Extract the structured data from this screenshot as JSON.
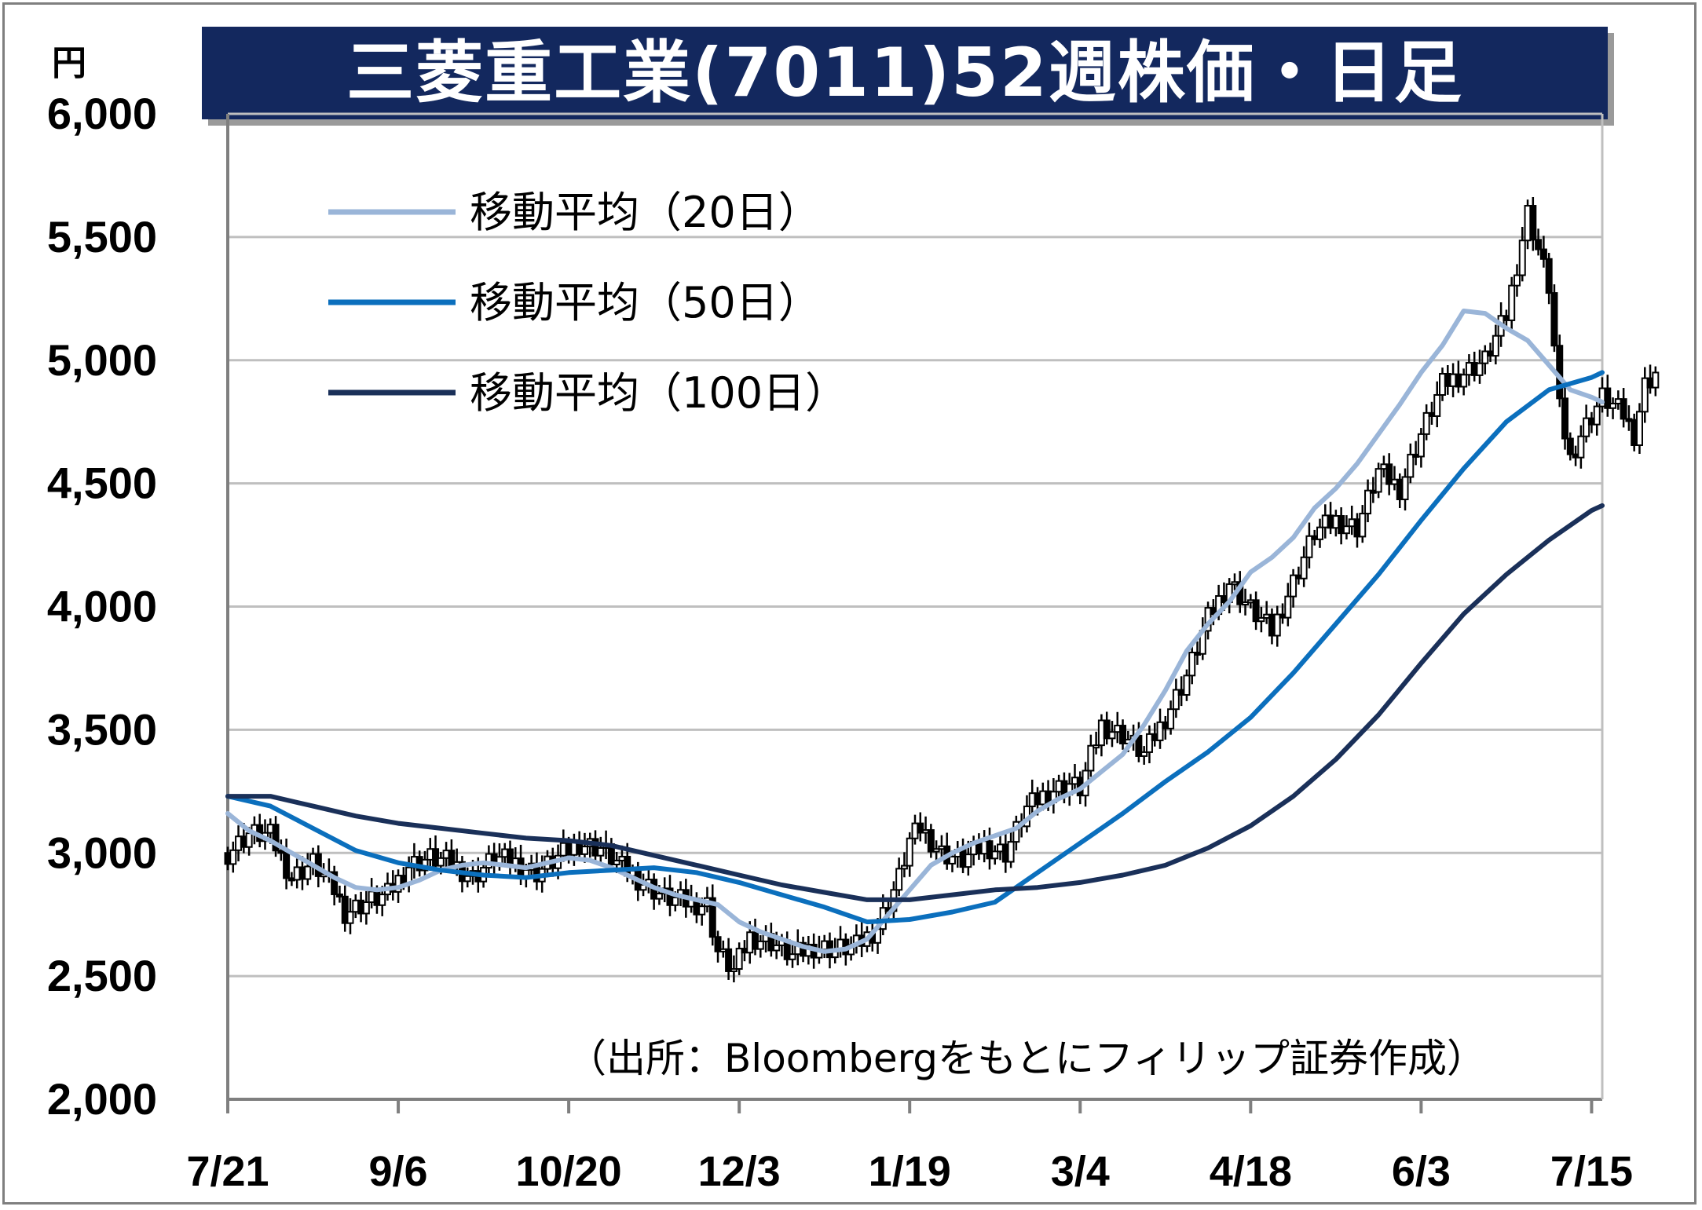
{
  "header": {
    "title": "三菱重工業(7011)52週株価・日足",
    "unit": "円"
  },
  "source_note": "（出所：Bloombergをもとにフィリップ証券作成）",
  "colors": {
    "title_bg": "#13285e",
    "ma20": "#9ab5d8",
    "ma50": "#0b6fbd",
    "ma100": "#1a3059",
    "candle": "#000000",
    "grid": "#bfbfbf"
  },
  "chart_data": {
    "type": "line",
    "title": "三菱重工業(7011)52週株価・日足",
    "ylabel": "円",
    "ylim": [
      2000,
      6000
    ],
    "yticks": [
      2000,
      2500,
      3000,
      3500,
      4000,
      4500,
      5000,
      5500,
      6000
    ],
    "ytick_labels": [
      "2,000",
      "2,500",
      "3,000",
      "3,500",
      "4,000",
      "4,500",
      "5,000",
      "5,500",
      "6,000"
    ],
    "x_tick_labels": [
      "7/21",
      "9/6",
      "10/20",
      "12/3",
      "1/19",
      "3/4",
      "4/18",
      "6/3",
      "7/15"
    ],
    "x_tick_index": [
      0,
      32,
      64,
      96,
      128,
      160,
      192,
      224,
      256
    ],
    "grid": true,
    "legend": "top-left",
    "candles_approx_close": [
      [
        0,
        3000
      ],
      [
        4,
        3080
      ],
      [
        8,
        3070
      ],
      [
        12,
        2900
      ],
      [
        16,
        2960
      ],
      [
        20,
        2850
      ],
      [
        22,
        2760
      ],
      [
        26,
        2800
      ],
      [
        30,
        2830
      ],
      [
        34,
        2950
      ],
      [
        38,
        2980
      ],
      [
        42,
        2960
      ],
      [
        46,
        2900
      ],
      [
        50,
        2980
      ],
      [
        54,
        2960
      ],
      [
        58,
        2920
      ],
      [
        62,
        2980
      ],
      [
        66,
        3040
      ],
      [
        70,
        3020
      ],
      [
        74,
        2940
      ],
      [
        78,
        2880
      ],
      [
        82,
        2820
      ],
      [
        86,
        2800
      ],
      [
        90,
        2790
      ],
      [
        92,
        2600
      ],
      [
        95,
        2520
      ],
      [
        98,
        2660
      ],
      [
        102,
        2640
      ],
      [
        106,
        2580
      ],
      [
        110,
        2620
      ],
      [
        114,
        2610
      ],
      [
        118,
        2620
      ],
      [
        122,
        2700
      ],
      [
        126,
        2900
      ],
      [
        128,
        3050
      ],
      [
        130,
        3100
      ],
      [
        134,
        3000
      ],
      [
        138,
        2970
      ],
      [
        142,
        3030
      ],
      [
        146,
        3000
      ],
      [
        150,
        3180
      ],
      [
        154,
        3250
      ],
      [
        158,
        3280
      ],
      [
        160,
        3260
      ],
      [
        164,
        3520
      ],
      [
        168,
        3480
      ],
      [
        172,
        3400
      ],
      [
        176,
        3550
      ],
      [
        180,
        3720
      ],
      [
        184,
        3950
      ],
      [
        188,
        4100
      ],
      [
        192,
        3990
      ],
      [
        196,
        3900
      ],
      [
        200,
        4100
      ],
      [
        204,
        4300
      ],
      [
        208,
        4350
      ],
      [
        212,
        4320
      ],
      [
        216,
        4550
      ],
      [
        220,
        4480
      ],
      [
        224,
        4700
      ],
      [
        228,
        4900
      ],
      [
        232,
        4950
      ],
      [
        236,
        5000
      ],
      [
        240,
        5180
      ],
      [
        244,
        5600
      ],
      [
        246,
        5450
      ],
      [
        248,
        5300
      ],
      [
        250,
        4800
      ],
      [
        252,
        4600
      ],
      [
        254,
        4700
      ],
      [
        258,
        4850
      ],
      [
        262,
        4780
      ],
      [
        264,
        4700
      ],
      [
        266,
        4900
      ],
      [
        268,
        4950
      ]
    ],
    "series": [
      {
        "name": "移動平均（20日）",
        "x": [
          0,
          4,
          8,
          12,
          16,
          20,
          24,
          28,
          32,
          36,
          40,
          44,
          48,
          52,
          56,
          60,
          64,
          68,
          72,
          76,
          80,
          84,
          88,
          92,
          96,
          100,
          104,
          108,
          112,
          116,
          120,
          124,
          128,
          132,
          136,
          140,
          144,
          148,
          152,
          156,
          160,
          164,
          168,
          172,
          176,
          180,
          184,
          188,
          192,
          196,
          200,
          204,
          208,
          212,
          216,
          220,
          224,
          228,
          232,
          236,
          240,
          244,
          248,
          252,
          256,
          258
        ],
        "values": [
          3160,
          3090,
          3050,
          3000,
          2950,
          2900,
          2860,
          2850,
          2860,
          2890,
          2930,
          2950,
          2960,
          2950,
          2940,
          2960,
          2980,
          2970,
          2940,
          2900,
          2860,
          2830,
          2810,
          2790,
          2720,
          2680,
          2650,
          2620,
          2600,
          2610,
          2650,
          2750,
          2850,
          2950,
          3000,
          3040,
          3070,
          3100,
          3170,
          3220,
          3260,
          3330,
          3400,
          3520,
          3660,
          3820,
          3930,
          4020,
          4140,
          4200,
          4280,
          4400,
          4480,
          4580,
          4700,
          4820,
          4950,
          5060,
          5200,
          5190,
          5130,
          5080,
          4980,
          4880,
          4850,
          4830
        ]
      },
      {
        "name": "移動平均（50日）",
        "x": [
          0,
          8,
          16,
          24,
          32,
          40,
          48,
          56,
          64,
          72,
          80,
          88,
          96,
          104,
          112,
          120,
          128,
          136,
          144,
          152,
          160,
          168,
          176,
          184,
          192,
          200,
          208,
          216,
          224,
          232,
          240,
          248,
          256,
          258
        ],
        "values": [
          3230,
          3190,
          3100,
          3010,
          2960,
          2930,
          2910,
          2900,
          2920,
          2930,
          2940,
          2920,
          2880,
          2830,
          2780,
          2720,
          2730,
          2760,
          2800,
          2920,
          3040,
          3160,
          3290,
          3410,
          3550,
          3730,
          3930,
          4130,
          4350,
          4560,
          4750,
          4880,
          4930,
          4950
        ]
      },
      {
        "name": "移動平均（100日）",
        "x": [
          0,
          8,
          16,
          24,
          32,
          40,
          48,
          56,
          64,
          72,
          80,
          88,
          96,
          104,
          112,
          120,
          128,
          136,
          144,
          152,
          160,
          168,
          176,
          184,
          192,
          200,
          208,
          216,
          224,
          232,
          240,
          248,
          256,
          258
        ],
        "values": [
          3230,
          3230,
          3190,
          3150,
          3120,
          3100,
          3080,
          3060,
          3050,
          3030,
          2990,
          2950,
          2910,
          2870,
          2840,
          2810,
          2810,
          2830,
          2850,
          2860,
          2880,
          2910,
          2950,
          3020,
          3110,
          3230,
          3380,
          3560,
          3770,
          3970,
          4130,
          4270,
          4390,
          4410
        ]
      }
    ]
  }
}
